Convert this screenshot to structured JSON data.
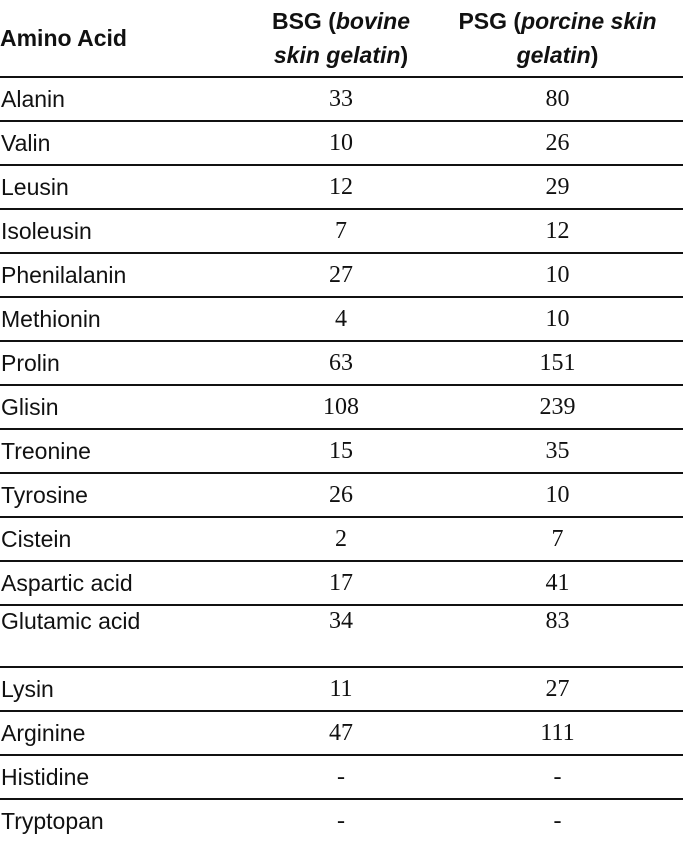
{
  "table": {
    "header": {
      "amino_acid": "Amino Acid",
      "bsg_prefix": "BSG (",
      "bsg_italic_1": "bovine",
      "bsg_italic_2": "skin gelatin",
      "bsg_suffix": ")",
      "psg_prefix": "PSG (",
      "psg_italic_1": "porcine skin",
      "psg_italic_2": "gelatin",
      "psg_suffix": ")"
    },
    "rows": [
      {
        "name": "Alanin",
        "bsg": "33",
        "psg": "80"
      },
      {
        "name": "Valin",
        "bsg": "10",
        "psg": "26"
      },
      {
        "name": "Leusin",
        "bsg": "12",
        "psg": "29"
      },
      {
        "name": "Isoleusin",
        "bsg": "7",
        "psg": "12"
      },
      {
        "name": "Phenilalanin",
        "bsg": "27",
        "psg": "10"
      },
      {
        "name": "Methionin",
        "bsg": "4",
        "psg": "10"
      },
      {
        "name": "Prolin",
        "bsg": "63",
        "psg": "151"
      },
      {
        "name": "Glisin",
        "bsg": "108",
        "psg": "239"
      },
      {
        "name": "Treonine",
        "bsg": "15",
        "psg": "35"
      },
      {
        "name": "Tyrosine",
        "bsg": "26",
        "psg": "10"
      },
      {
        "name": "Cistein",
        "bsg": "2",
        "psg": "7"
      },
      {
        "name": "Aspartic acid",
        "bsg": "17",
        "psg": "41"
      },
      {
        "name": "Glutamic acid",
        "bsg": "34",
        "psg": "83"
      },
      {
        "name": "Lysin",
        "bsg": "11",
        "psg": "27"
      },
      {
        "name": "Arginine",
        "bsg": "47",
        "psg": "111"
      },
      {
        "name": "Histidine",
        "bsg": "-",
        "psg": "-"
      },
      {
        "name": "Tryptopan",
        "bsg": "-",
        "psg": "-"
      }
    ]
  }
}
